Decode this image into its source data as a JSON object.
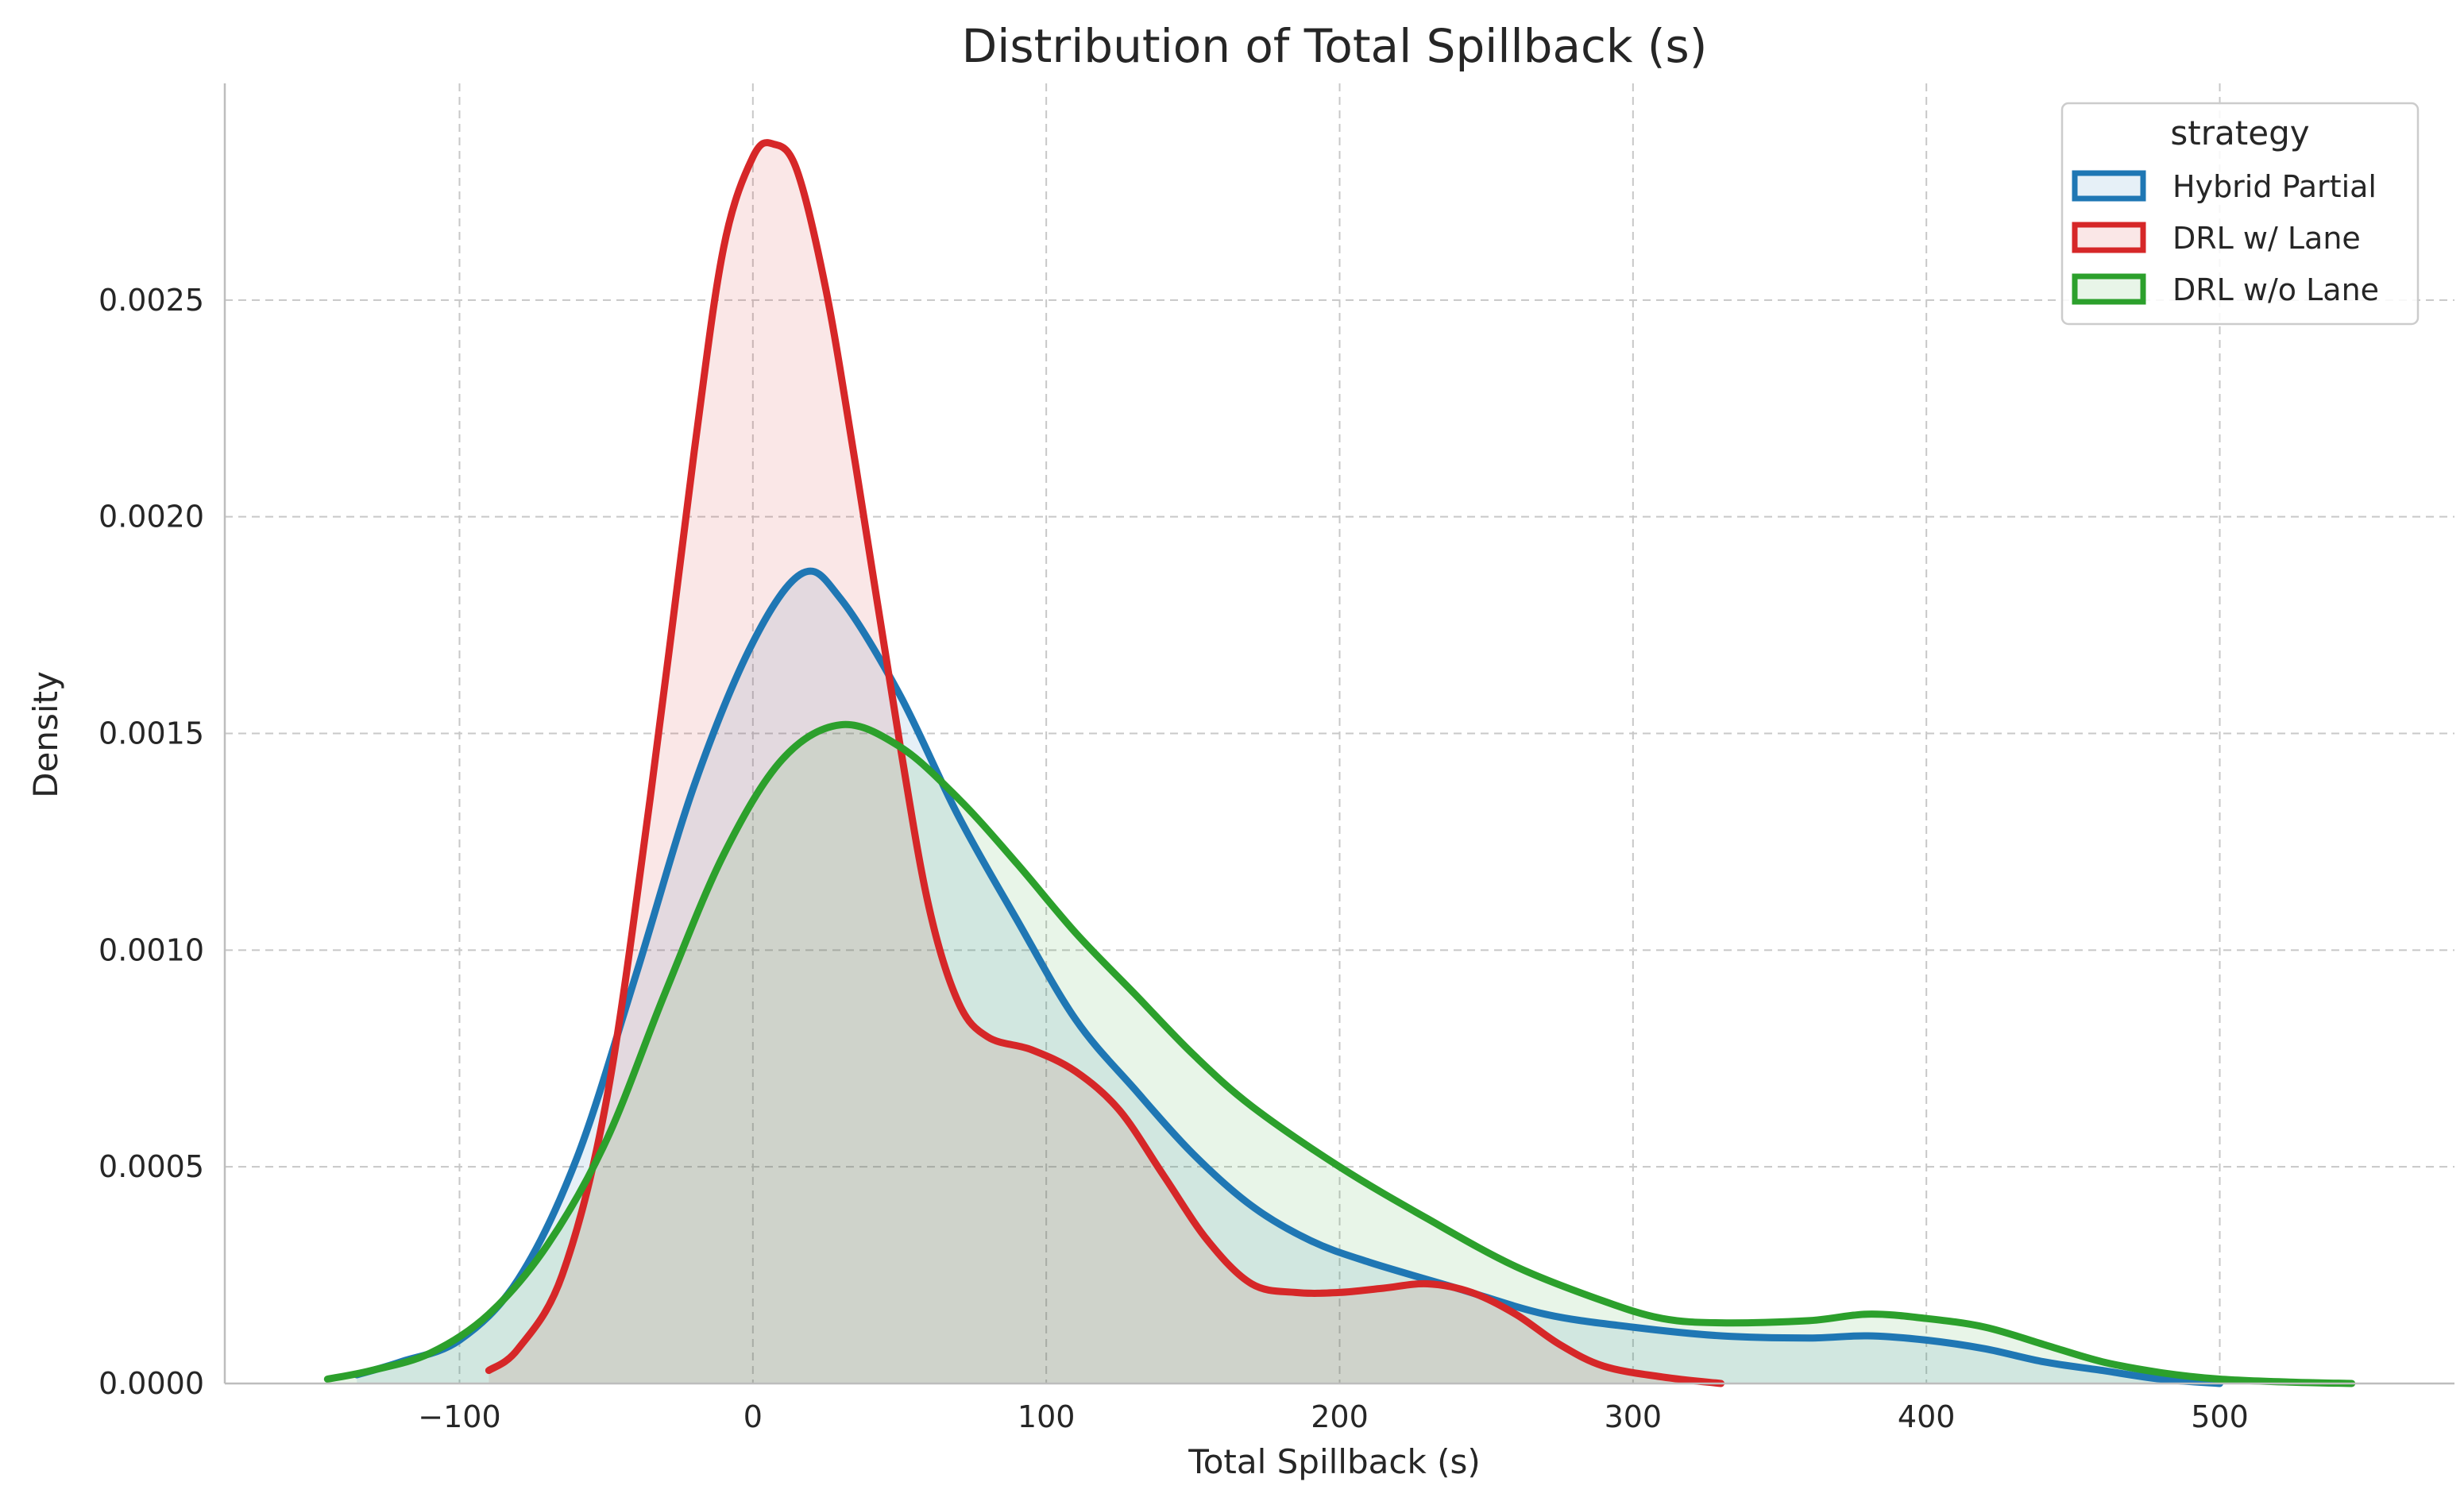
{
  "chart_data": {
    "type": "area",
    "title": "Distribution of Total Spillback (s)",
    "xlabel": "Total Spillback (s)",
    "ylabel": "Density",
    "xlim": [
      -180,
      580
    ],
    "ylim": [
      0,
      0.003
    ],
    "x_ticks": [
      -100,
      0,
      100,
      200,
      300,
      400,
      500
    ],
    "x_tick_labels": [
      "−100",
      "0",
      "100",
      "200",
      "300",
      "400",
      "500"
    ],
    "y_ticks": [
      0,
      0.0005,
      0.001,
      0.0015,
      0.002,
      0.0025
    ],
    "y_tick_labels": [
      "0.0000",
      "0.0005",
      "0.0010",
      "0.0015",
      "0.0020",
      "0.0025"
    ],
    "grid": true,
    "legend": {
      "title": "strategy",
      "placement": "top-right"
    },
    "series": [
      {
        "name": "Hybrid Partial",
        "color": "#1f77b4",
        "points": [
          [
            -135,
            2e-05
          ],
          [
            -120,
            5e-05
          ],
          [
            -100,
            0.0001
          ],
          [
            -80,
            0.00024
          ],
          [
            -60,
            0.00052
          ],
          [
            -40,
            0.00094
          ],
          [
            -20,
            0.00138
          ],
          [
            0,
            0.00171
          ],
          [
            17,
            0.00187
          ],
          [
            30,
            0.00181
          ],
          [
            50,
            0.00159
          ],
          [
            70,
            0.00131
          ],
          [
            90,
            0.00107
          ],
          [
            110,
            0.00084
          ],
          [
            130,
            0.00068
          ],
          [
            150,
            0.00053
          ],
          [
            170,
            0.00041
          ],
          [
            190,
            0.00033
          ],
          [
            210,
            0.00028
          ],
          [
            240,
            0.00022
          ],
          [
            270,
            0.00016
          ],
          [
            300,
            0.00013
          ],
          [
            330,
            0.00011
          ],
          [
            360,
            0.000105
          ],
          [
            380,
            0.00011
          ],
          [
            400,
            0.0001
          ],
          [
            420,
            8e-05
          ],
          [
            440,
            5e-05
          ],
          [
            460,
            3e-05
          ],
          [
            480,
            1e-05
          ],
          [
            500,
            0.0
          ]
        ]
      },
      {
        "name": "DRL w/ Lane",
        "color": "#d62728",
        "points": [
          [
            -90,
            3e-05
          ],
          [
            -80,
            8e-05
          ],
          [
            -65,
            0.00025
          ],
          [
            -50,
            0.00065
          ],
          [
            -35,
            0.00135
          ],
          [
            -20,
            0.00215
          ],
          [
            -10,
            0.00262
          ],
          [
            0,
            0.00283
          ],
          [
            7,
            0.00286
          ],
          [
            15,
            0.0028
          ],
          [
            25,
            0.00252
          ],
          [
            35,
            0.00212
          ],
          [
            50,
            0.00148
          ],
          [
            60,
            0.0011
          ],
          [
            70,
            0.00088
          ],
          [
            80,
            0.0008
          ],
          [
            95,
            0.00077
          ],
          [
            110,
            0.00072
          ],
          [
            125,
            0.00063
          ],
          [
            140,
            0.00048
          ],
          [
            155,
            0.00033
          ],
          [
            170,
            0.00023
          ],
          [
            185,
            0.00021
          ],
          [
            200,
            0.00021
          ],
          [
            215,
            0.00022
          ],
          [
            230,
            0.00023
          ],
          [
            245,
            0.00021
          ],
          [
            260,
            0.00016
          ],
          [
            275,
            9e-05
          ],
          [
            290,
            4e-05
          ],
          [
            310,
            1.5e-05
          ],
          [
            330,
            0.0
          ]
        ]
      },
      {
        "name": "DRL w/o Lane",
        "color": "#2ca02c",
        "points": [
          [
            -145,
            1e-05
          ],
          [
            -130,
            3e-05
          ],
          [
            -110,
            7e-05
          ],
          [
            -90,
            0.00016
          ],
          [
            -70,
            0.00032
          ],
          [
            -50,
            0.00056
          ],
          [
            -30,
            0.0009
          ],
          [
            -10,
            0.00122
          ],
          [
            10,
            0.00144
          ],
          [
            30,
            0.00152
          ],
          [
            50,
            0.00147
          ],
          [
            70,
            0.00135
          ],
          [
            90,
            0.0012
          ],
          [
            110,
            0.00104
          ],
          [
            130,
            0.0009
          ],
          [
            150,
            0.00076
          ],
          [
            170,
            0.00064
          ],
          [
            200,
            0.0005
          ],
          [
            230,
            0.00038
          ],
          [
            260,
            0.00027
          ],
          [
            290,
            0.00019
          ],
          [
            310,
            0.00015
          ],
          [
            330,
            0.00014
          ],
          [
            360,
            0.000145
          ],
          [
            380,
            0.00016
          ],
          [
            400,
            0.00015
          ],
          [
            420,
            0.00013
          ],
          [
            440,
            9e-05
          ],
          [
            460,
            5e-05
          ],
          [
            480,
            2.5e-05
          ],
          [
            500,
            1e-05
          ],
          [
            525,
            3e-06
          ],
          [
            545,
            0.0
          ]
        ]
      }
    ]
  }
}
